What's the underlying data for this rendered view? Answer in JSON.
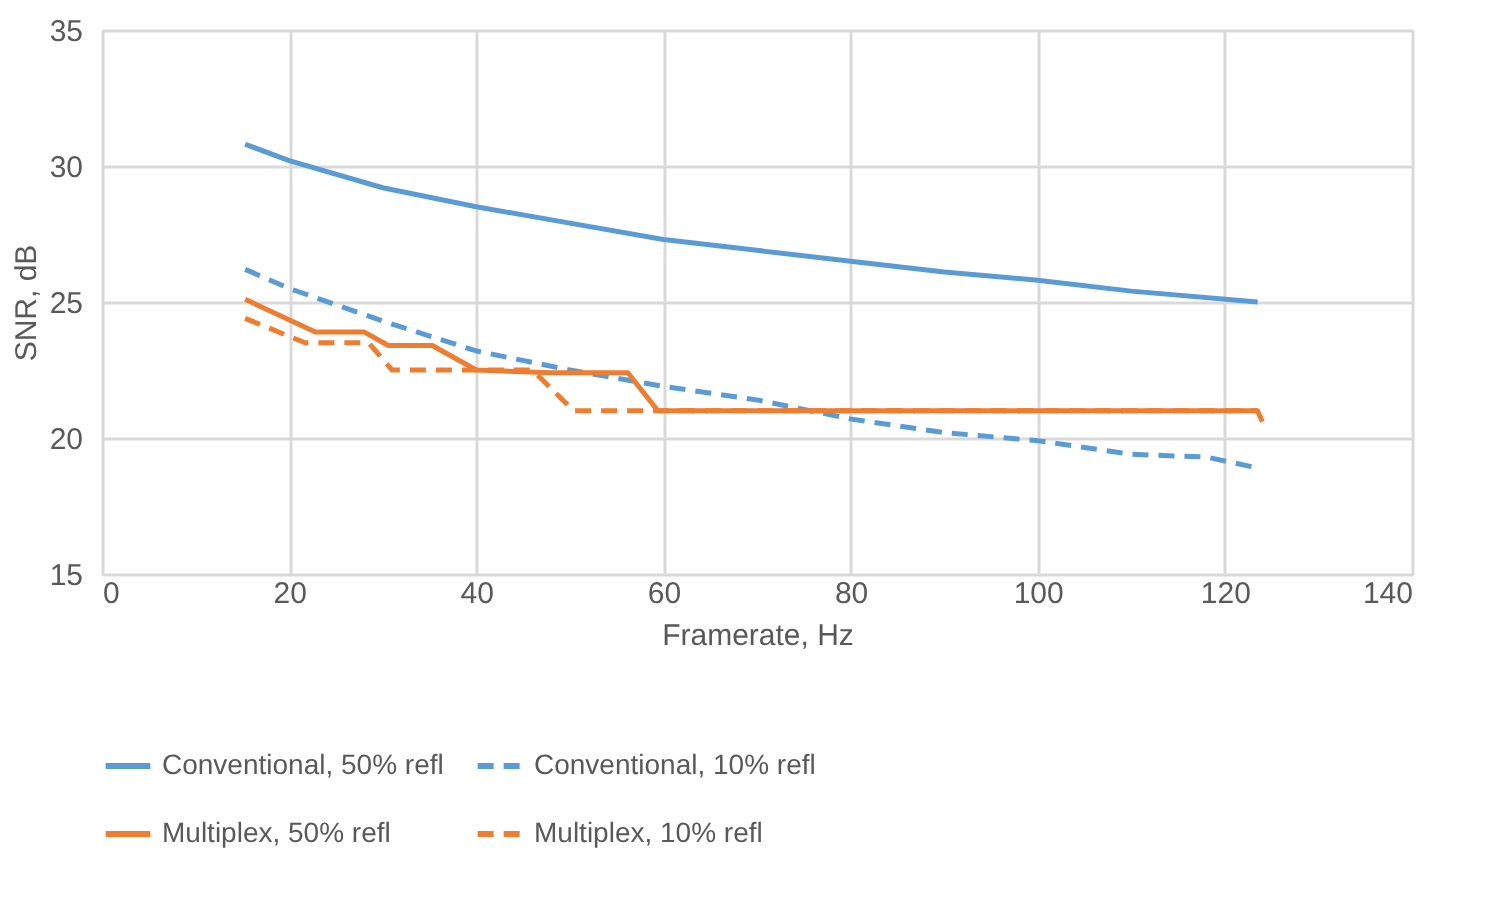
{
  "chart_data": {
    "type": "line",
    "xlabel": "Framerate, Hz",
    "ylabel": "SNR, dB",
    "xlim": [
      0,
      140
    ],
    "xticks": [
      0,
      20,
      40,
      60,
      80,
      100,
      120,
      140
    ],
    "ylim": [
      15,
      35
    ],
    "yticks": [
      15,
      20,
      25,
      30,
      35
    ],
    "grid": true,
    "legend": "bottom",
    "marker": "none",
    "series": [
      {
        "name": "Conventional, 50% refl",
        "color": "#5b9bd5",
        "line_style": "solid",
        "x": [
          15.3,
          20,
          30,
          40,
          50,
          60,
          70,
          80,
          90,
          100,
          110,
          123.5
        ],
        "values": [
          30.8,
          30.2,
          29.2,
          28.5,
          27.9,
          27.3,
          26.9,
          26.5,
          26.1,
          25.8,
          25.4,
          25.0
        ]
      },
      {
        "name": "Conventional, 10% refl",
        "color": "#5b9bd5",
        "line_style": "dashed",
        "x": [
          15.3,
          20,
          30,
          40,
          50,
          60,
          70,
          80,
          90,
          100,
          110,
          118,
          123.5
        ],
        "values": [
          26.2,
          25.5,
          24.3,
          23.2,
          22.5,
          21.9,
          21.4,
          20.7,
          20.2,
          19.9,
          19.4,
          19.3,
          18.9
        ]
      },
      {
        "name": "Multiplex, 50% refl",
        "color": "#ed7d31",
        "line_style": "solid",
        "x": [
          15.3,
          22.8,
          28,
          30.6,
          35.3,
          40,
          48,
          56.2,
          59.4,
          80,
          123.5,
          124
        ],
        "values": [
          25.1,
          23.9,
          23.9,
          23.4,
          23.4,
          22.5,
          22.4,
          22.4,
          21.0,
          21.0,
          21.0,
          20.6
        ]
      },
      {
        "name": "Multiplex, 10% refl",
        "color": "#ed7d31",
        "line_style": "dashed",
        "x": [
          15.3,
          21.7,
          28.5,
          31,
          46,
          50.4,
          123.5
        ],
        "values": [
          24.4,
          23.5,
          23.5,
          22.5,
          22.5,
          21.0,
          21.0
        ]
      }
    ]
  }
}
